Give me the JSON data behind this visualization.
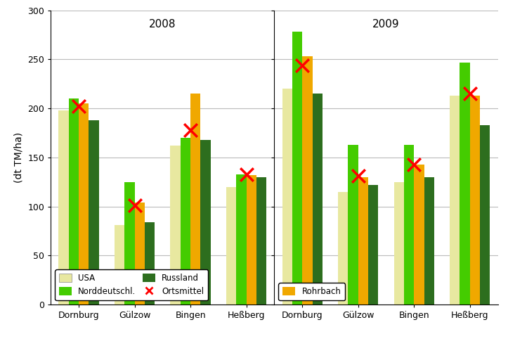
{
  "years": [
    "2008",
    "2009"
  ],
  "locations": [
    "Dornburg",
    "Gülzow",
    "Bingen",
    "Heßberg"
  ],
  "series_order": [
    "USA",
    "Norddeutschl.",
    "Rohrbach",
    "Russland"
  ],
  "series": {
    "USA": {
      "color": "#e8e8a0",
      "values_2008": [
        198,
        81,
        162,
        120
      ],
      "values_2009": [
        220,
        115,
        125,
        213
      ]
    },
    "Russland": {
      "color": "#2d6e1e",
      "values_2008": [
        188,
        84,
        168,
        130
      ],
      "values_2009": [
        215,
        122,
        130,
        183
      ]
    },
    "Norddeutschl.": {
      "color": "#44cc00",
      "values_2008": [
        210,
        125,
        170,
        133
      ],
      "values_2009": [
        278,
        163,
        163,
        247
      ]
    },
    "Rohrbach": {
      "color": "#f0a800",
      "values_2008": [
        205,
        104,
        215,
        132
      ],
      "values_2009": [
        253,
        130,
        143,
        213
      ]
    }
  },
  "ortsmittel": {
    "2008": [
      202,
      101,
      178,
      133
    ],
    "2009": [
      244,
      131,
      143,
      215
    ]
  },
  "ylabel": "(dt TM/ha)",
  "ylim": [
    0,
    300
  ],
  "yticks": [
    0,
    50,
    100,
    150,
    200,
    250,
    300
  ],
  "bar_width": 0.18,
  "title_2008": "2008",
  "title_2009": "2009",
  "background_color": "#ffffff",
  "grid_color": "#bbbbbb"
}
